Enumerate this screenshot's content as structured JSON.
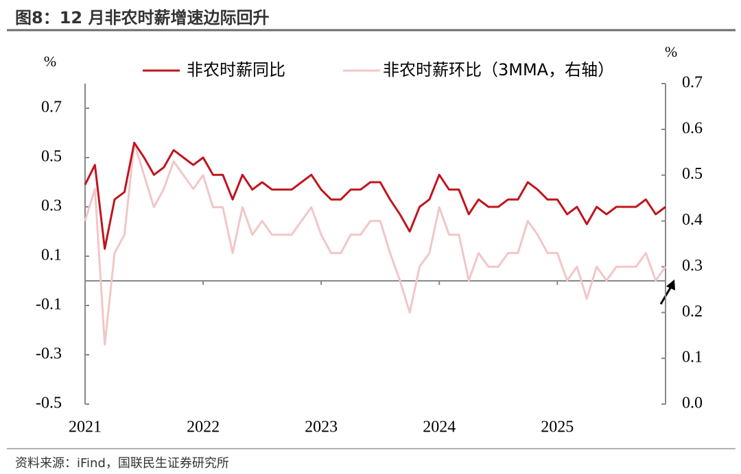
{
  "title": "图8：12 月非农时薪增速边际回升",
  "source": "资料来源：iFind，国联民生证券研究所",
  "chart_data": {
    "type": "line",
    "ylabel": "%",
    "y2label": "%",
    "categories": [
      "2021",
      null,
      null,
      null,
      null,
      null,
      null,
      null,
      null,
      null,
      null,
      null,
      "2022",
      null,
      null,
      null,
      null,
      null,
      null,
      null,
      null,
      null,
      null,
      null,
      "2023",
      null,
      null,
      null,
      null,
      null,
      null,
      null,
      null,
      null,
      null,
      null,
      "2024",
      null,
      null,
      null,
      null,
      null,
      null,
      null,
      null,
      null,
      null,
      null,
      "2025",
      null,
      null,
      null,
      null,
      null,
      null,
      null,
      null,
      null,
      null,
      null
    ],
    "series": [
      {
        "name": "非农时薪同比",
        "color": "#c0141c",
        "axis": "y",
        "values": [
          0.39,
          0.47,
          0.13,
          0.33,
          0.36,
          0.56,
          0.5,
          0.43,
          0.46,
          0.53,
          0.5,
          0.47,
          0.5,
          0.43,
          0.43,
          0.33,
          0.43,
          0.37,
          0.4,
          0.37,
          0.37,
          0.37,
          0.4,
          0.43,
          0.37,
          0.33,
          0.33,
          0.37,
          0.37,
          0.4,
          0.4,
          0.33,
          0.27,
          0.2,
          0.3,
          0.33,
          0.43,
          0.37,
          0.37,
          0.27,
          0.33,
          0.3,
          0.3,
          0.33,
          0.33,
          0.4,
          0.37,
          0.33,
          0.33,
          0.27,
          0.3,
          0.23,
          0.3,
          0.27,
          0.3,
          0.3,
          0.3,
          0.33,
          0.27,
          0.3
        ]
      },
      {
        "name": "非农时薪环比（3MMA，右轴）",
        "color": "#f2c6c6",
        "axis": "y2",
        "values": [
          0.4,
          0.47,
          0.13,
          0.33,
          0.37,
          0.57,
          0.5,
          0.43,
          0.47,
          0.53,
          0.5,
          0.47,
          0.5,
          0.43,
          0.43,
          0.33,
          0.43,
          0.37,
          0.4,
          0.37,
          0.37,
          0.37,
          0.4,
          0.43,
          0.37,
          0.33,
          0.33,
          0.37,
          0.37,
          0.4,
          0.4,
          0.33,
          0.27,
          0.2,
          0.3,
          0.33,
          0.43,
          0.37,
          0.37,
          0.27,
          0.33,
          0.3,
          0.3,
          0.33,
          0.33,
          0.4,
          0.37,
          0.33,
          0.33,
          0.27,
          0.3,
          0.23,
          0.3,
          0.27,
          0.3,
          0.3,
          0.3,
          0.33,
          0.27,
          0.3
        ]
      }
    ],
    "ylim": [
      -0.5,
      0.8
    ],
    "yticks": [
      0.7,
      0.5,
      0.3,
      0.1,
      -0.1,
      -0.3,
      -0.5
    ],
    "y2lim": [
      0,
      0.7
    ],
    "y2ticks": [
      0.7,
      0.6,
      0.5,
      0.4,
      0.3,
      0.2,
      0.1,
      {
        "value": 0,
        "label": "0.0"
      }
    ],
    "legend": "top"
  }
}
